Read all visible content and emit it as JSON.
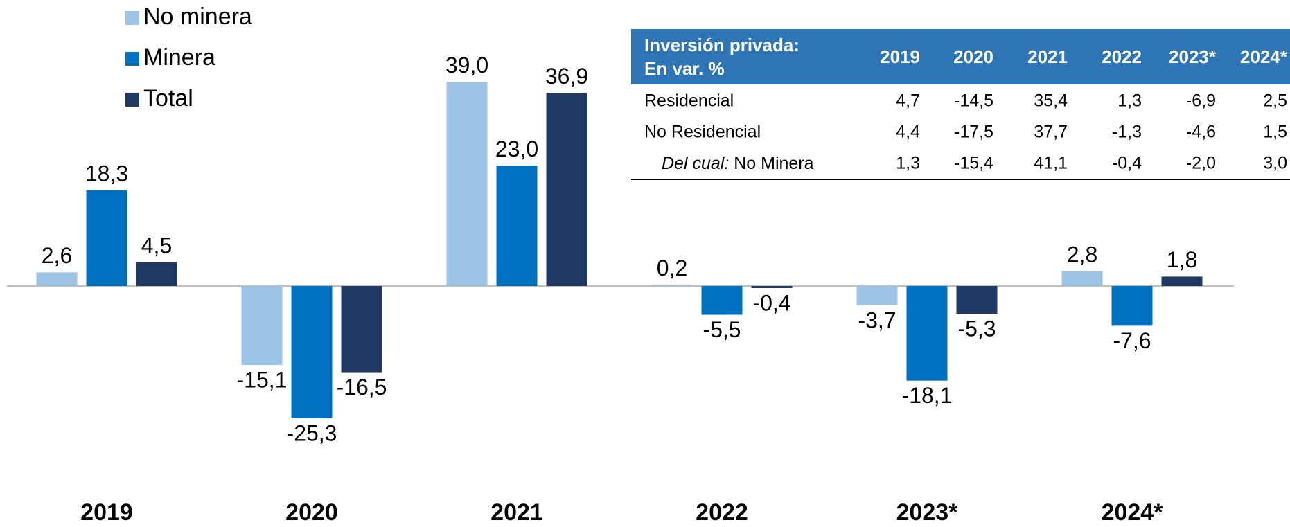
{
  "chart_data": {
    "type": "bar",
    "categories": [
      "2019",
      "2020",
      "2021",
      "2022",
      "2023*",
      "2024*"
    ],
    "series": [
      {
        "name": "No minera",
        "color": "#9dc3e6",
        "values": [
          2.6,
          -15.1,
          39.0,
          0.2,
          -3.7,
          2.8
        ],
        "value_labels": [
          "2,6",
          "-15,1",
          "39,0",
          "0,2",
          "-3,7",
          "2,8"
        ]
      },
      {
        "name": "Minera",
        "color": "#0070c0",
        "values": [
          18.3,
          -25.3,
          23.0,
          -5.5,
          -18.1,
          -7.6
        ],
        "value_labels": [
          "18,3",
          "-25,3",
          "23,0",
          "-5,5",
          "-18,1",
          "-7,6"
        ]
      },
      {
        "name": "Total",
        "color": "#1f3864",
        "values": [
          4.5,
          -16.5,
          36.9,
          -0.4,
          -5.3,
          1.8
        ],
        "value_labels": [
          "4,5",
          "-16,5",
          "36,9",
          "-0,4",
          "-5,3",
          "1,8"
        ]
      }
    ]
  },
  "table": {
    "header": {
      "title": [
        "Inversión privada:",
        "En var. %"
      ],
      "columns": [
        "2019",
        "2020",
        "2021",
        "2022",
        "2023*",
        "2024*"
      ]
    },
    "rows": [
      {
        "label": "Residencial",
        "cells": [
          "4,7",
          "-14,5",
          "35,4",
          "1,3",
          "-6,9",
          "2,5"
        ]
      },
      {
        "label": "No Residencial",
        "cells": [
          "4,4",
          "-17,5",
          "37,7",
          "-1,3",
          "-4,6",
          "1,5"
        ]
      },
      {
        "label_italic": "Del cual:",
        "label": "No Minera",
        "cells": [
          "1,3",
          "-15,4",
          "41,1",
          "-0,4",
          "-2,0",
          "3,0"
        ]
      }
    ]
  }
}
